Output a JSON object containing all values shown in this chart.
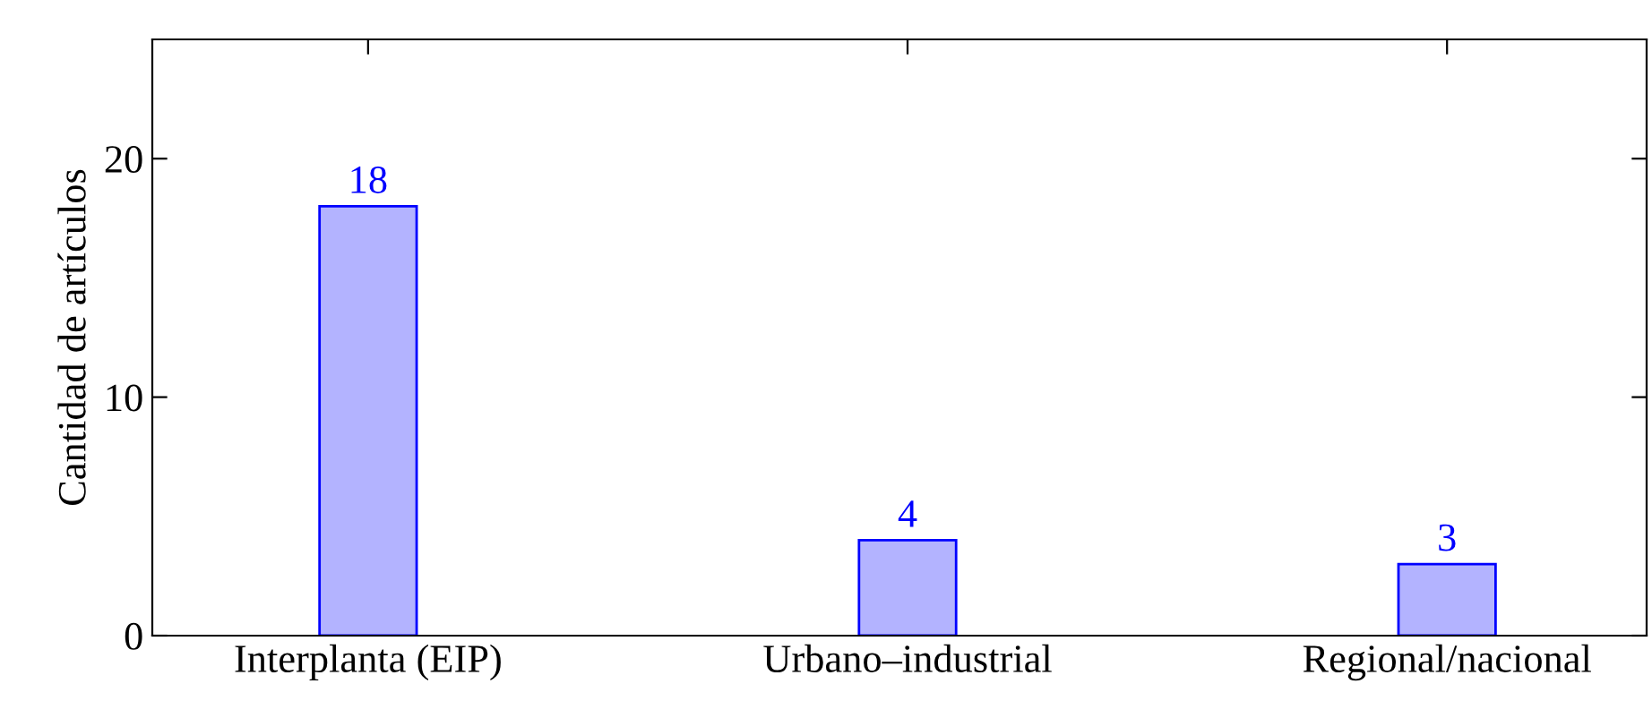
{
  "chart_data": {
    "type": "bar",
    "ylabel": "Cantidad de artículos",
    "categories": [
      "Interplanta (EIP)",
      "Urbano–industrial",
      "Regional/nacional"
    ],
    "series": [
      {
        "color": "#b3b3ff",
        "values": [
          18,
          4,
          3
        ]
      }
    ],
    "data_labels": true,
    "ylim": [
      0,
      25
    ],
    "yticks": [
      0,
      10,
      20
    ],
    "grid": false,
    "legend": false
  }
}
